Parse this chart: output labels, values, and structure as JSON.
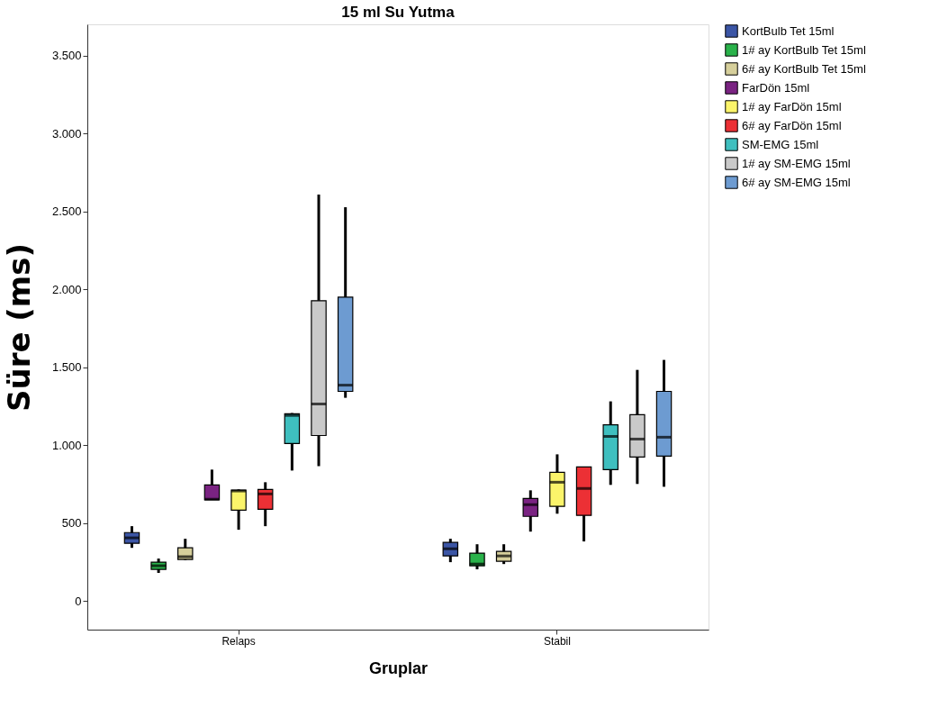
{
  "chart_data": {
    "type": "box",
    "title": "15 ml Su Yutma",
    "xlabel": "Gruplar",
    "ylabel": "Süre (ms)",
    "categories": [
      "Relaps",
      "Stabil"
    ],
    "ylim": [
      -185,
      3700
    ],
    "yticks": [
      0,
      500,
      {
        "value": 1000,
        "label": "1.000"
      },
      {
        "value": 1500,
        "label": "1.500"
      },
      {
        "value": 2000,
        "label": "2.000"
      },
      {
        "value": 2500,
        "label": "2.500"
      },
      {
        "value": 3000,
        "label": "3.000"
      },
      {
        "value": 3500,
        "label": "3.500"
      }
    ],
    "grid": false,
    "legend": "right",
    "series": [
      {
        "name": "KortBulb Tet 15ml",
        "color": "#3b55a5",
        "boxes": [
          {
            "low": 340,
            "q1": 369,
            "median": 404,
            "q3": 438,
            "high": 479
          },
          {
            "low": 248,
            "q1": 288,
            "median": 334,
            "q3": 375,
            "high": 398
          }
        ]
      },
      {
        "name": "1# ay KortBulb Tet 15ml",
        "color": "#29b24a",
        "boxes": [
          {
            "low": 179,
            "q1": 202,
            "median": 225,
            "q3": 248,
            "high": 271
          },
          {
            "low": 202,
            "q1": 225,
            "median": 236,
            "q3": 306,
            "high": 363
          }
        ]
      },
      {
        "name": "6# ay KortBulb Tet 15ml",
        "color": "#d6cf9b",
        "boxes": [
          {
            "low": 260,
            "q1": 265,
            "median": 283,
            "q3": 340,
            "high": 398
          },
          {
            "low": 236,
            "q1": 254,
            "median": 288,
            "q3": 317,
            "high": 363
          }
        ]
      },
      {
        "name": "FarDön 15ml",
        "color": "#7a2382",
        "boxes": [
          {
            "low": 648,
            "q1": 648,
            "median": 652,
            "q3": 744,
            "high": 842
          },
          {
            "low": 444,
            "q1": 542,
            "median": 617,
            "q3": 657,
            "high": 709
          }
        ]
      },
      {
        "name": "1# ay FarDön 15ml",
        "color": "#fbf46a",
        "boxes": [
          {
            "low": 456,
            "q1": 582,
            "median": 705,
            "q3": 710,
            "high": 715
          },
          {
            "low": 559,
            "q1": 606,
            "median": 761,
            "q3": 825,
            "high": 940
          }
        ]
      },
      {
        "name": "6# ay FarDön 15ml",
        "color": "#ec3035",
        "boxes": [
          {
            "low": 479,
            "q1": 588,
            "median": 686,
            "q3": 715,
            "high": 761
          },
          {
            "low": 381,
            "q1": 548,
            "median": 721,
            "q3": 859,
            "high": 859
          }
        ]
      },
      {
        "name": "SM-EMG 15ml",
        "color": "#3fbfbf",
        "boxes": [
          {
            "low": 836,
            "q1": 1009,
            "median": 1190,
            "q3": 1200,
            "high": 1205
          },
          {
            "low": 744,
            "q1": 842,
            "median": 1055,
            "q3": 1130,
            "high": 1280
          }
        ]
      },
      {
        "name": "1# ay  SM-EMG 15ml",
        "color": "#c9c9c9",
        "boxes": [
          {
            "low": 865,
            "q1": 1061,
            "median": 1263,
            "q3": 1926,
            "high": 2607
          },
          {
            "low": 750,
            "q1": 923,
            "median": 1038,
            "q3": 1194,
            "high": 1482
          }
        ]
      },
      {
        "name": "6# ay  SM-EMG 15ml",
        "color": "#6d9bd1",
        "boxes": [
          {
            "low": 1303,
            "q1": 1344,
            "median": 1384,
            "q3": 1949,
            "high": 2526
          },
          {
            "low": 732,
            "q1": 929,
            "median": 1050,
            "q3": 1344,
            "high": 1546
          }
        ]
      }
    ]
  }
}
